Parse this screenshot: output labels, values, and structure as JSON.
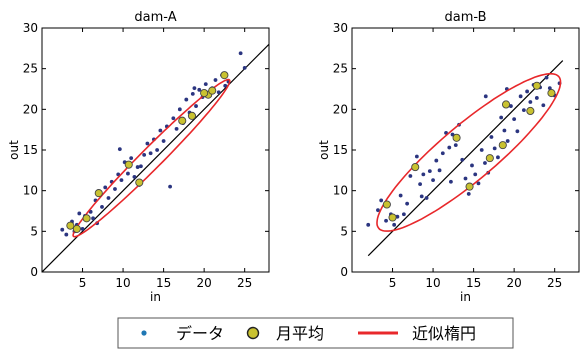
{
  "chart_data": [
    {
      "type": "scatter",
      "title": "dam-A",
      "xlabel": "in",
      "ylabel": "out",
      "xlim": [
        0,
        28
      ],
      "ylim": [
        0,
        30
      ],
      "xticks": [
        5,
        10,
        15,
        20,
        25
      ],
      "yticks": [
        0,
        5,
        10,
        15,
        20,
        25,
        30
      ],
      "grid": false,
      "reference_line": [
        [
          0,
          0
        ],
        [
          28,
          28
        ]
      ],
      "ellipse": {
        "center": [
          13.5,
          14.0
        ],
        "semi_major": 13.6,
        "semi_minor": 1.3,
        "angle_deg": 45
      },
      "series": [
        {
          "name": "データ",
          "points": [
            [
              2.5,
              5.2
            ],
            [
              3.0,
              4.6
            ],
            [
              3.3,
              5.6
            ],
            [
              3.7,
              6.2
            ],
            [
              4.0,
              5.0
            ],
            [
              4.3,
              5.8
            ],
            [
              4.6,
              7.2
            ],
            [
              5.0,
              5.3
            ],
            [
              5.3,
              6.9
            ],
            [
              5.6,
              6.4
            ],
            [
              6.0,
              7.4
            ],
            [
              6.3,
              6.6
            ],
            [
              6.6,
              8.8
            ],
            [
              7.0,
              9.5
            ],
            [
              7.4,
              8.0
            ],
            [
              7.8,
              10.4
            ],
            [
              8.2,
              9.1
            ],
            [
              8.6,
              11.1
            ],
            [
              9.0,
              10.2
            ],
            [
              9.4,
              12.0
            ],
            [
              9.8,
              11.3
            ],
            [
              10.2,
              13.5
            ],
            [
              10.6,
              12.1
            ],
            [
              11.0,
              14.0
            ],
            [
              11.4,
              11.7
            ],
            [
              11.8,
              12.9
            ],
            [
              12.2,
              13.0
            ],
            [
              12.6,
              14.4
            ],
            [
              13.0,
              15.8
            ],
            [
              13.4,
              14.6
            ],
            [
              13.8,
              16.3
            ],
            [
              14.2,
              15.0
            ],
            [
              14.6,
              17.4
            ],
            [
              15.0,
              16.1
            ],
            [
              15.4,
              17.9
            ],
            [
              15.8,
              10.5
            ],
            [
              16.2,
              18.9
            ],
            [
              16.6,
              17.6
            ],
            [
              17.0,
              20.0
            ],
            [
              17.4,
              18.3
            ],
            [
              17.8,
              21.2
            ],
            [
              18.2,
              19.6
            ],
            [
              18.6,
              21.9
            ],
            [
              19.0,
              20.4
            ],
            [
              19.4,
              22.4
            ],
            [
              19.8,
              21.5
            ],
            [
              20.2,
              23.1
            ],
            [
              20.6,
              21.9
            ],
            [
              21.0,
              22.6
            ],
            [
              21.4,
              23.6
            ],
            [
              21.8,
              22.1
            ],
            [
              22.2,
              24.2
            ],
            [
              22.6,
              22.9
            ],
            [
              23.0,
              23.4
            ],
            [
              24.5,
              26.9
            ],
            [
              25.0,
              25.1
            ],
            [
              12.0,
              10.7
            ],
            [
              9.6,
              15.1
            ],
            [
              18.8,
              22.6
            ],
            [
              6.8,
              6.0
            ]
          ]
        },
        {
          "name": "月平均",
          "points": [
            [
              3.5,
              5.7
            ],
            [
              4.3,
              5.3
            ],
            [
              5.5,
              6.6
            ],
            [
              7.0,
              9.7
            ],
            [
              10.7,
              13.2
            ],
            [
              12.0,
              11.0
            ],
            [
              17.3,
              18.6
            ],
            [
              18.5,
              19.2
            ],
            [
              20.5,
              21.8
            ],
            [
              21.0,
              22.3
            ],
            [
              22.5,
              24.2
            ],
            [
              20.0,
              22.0
            ]
          ]
        }
      ]
    },
    {
      "type": "scatter",
      "title": "dam-B",
      "xlabel": "in",
      "ylabel": "out",
      "xlim": [
        0,
        28
      ],
      "ylim": [
        0,
        30
      ],
      "xticks": [
        5,
        10,
        15,
        20,
        25
      ],
      "yticks": [
        0,
        5,
        10,
        15,
        20,
        25,
        30
      ],
      "grid": false,
      "reference_line": [
        [
          2,
          2
        ],
        [
          26,
          26
        ]
      ],
      "ellipse": {
        "center": [
          14.4,
          14.7
        ],
        "semi_major": 14.5,
        "semi_minor": 3.4,
        "angle_deg": 40
      },
      "series": [
        {
          "name": "データ",
          "points": [
            [
              2.0,
              5.8
            ],
            [
              3.2,
              7.6
            ],
            [
              3.6,
              8.8
            ],
            [
              4.2,
              6.3
            ],
            [
              4.8,
              7.1
            ],
            [
              5.2,
              5.8
            ],
            [
              5.6,
              6.8
            ],
            [
              6.0,
              9.4
            ],
            [
              6.4,
              7.1
            ],
            [
              6.8,
              8.4
            ],
            [
              7.2,
              11.8
            ],
            [
              7.6,
              12.9
            ],
            [
              8.0,
              14.2
            ],
            [
              8.4,
              10.8
            ],
            [
              8.8,
              12.0
            ],
            [
              9.2,
              9.1
            ],
            [
              9.6,
              12.4
            ],
            [
              10.0,
              11.3
            ],
            [
              10.4,
              13.7
            ],
            [
              10.8,
              12.5
            ],
            [
              11.2,
              14.6
            ],
            [
              11.6,
              17.1
            ],
            [
              12.0,
              15.3
            ],
            [
              12.4,
              16.9
            ],
            [
              12.8,
              15.6
            ],
            [
              13.2,
              18.1
            ],
            [
              13.6,
              13.8
            ],
            [
              14.0,
              11.5
            ],
            [
              14.4,
              9.6
            ],
            [
              14.8,
              13.1
            ],
            [
              15.2,
              12.0
            ],
            [
              15.6,
              10.9
            ],
            [
              16.0,
              15.0
            ],
            [
              16.4,
              13.4
            ],
            [
              16.8,
              12.2
            ],
            [
              17.2,
              16.6
            ],
            [
              17.6,
              15.2
            ],
            [
              18.0,
              14.1
            ],
            [
              18.4,
              19.0
            ],
            [
              18.8,
              17.4
            ],
            [
              19.2,
              16.1
            ],
            [
              19.6,
              20.4
            ],
            [
              20.0,
              18.8
            ],
            [
              20.4,
              17.3
            ],
            [
              20.8,
              21.6
            ],
            [
              21.2,
              19.9
            ],
            [
              21.6,
              22.2
            ],
            [
              22.0,
              20.9
            ],
            [
              22.4,
              23.0
            ],
            [
              22.8,
              21.4
            ],
            [
              23.2,
              22.7
            ],
            [
              23.6,
              20.5
            ],
            [
              24.0,
              23.9
            ],
            [
              24.4,
              22.6
            ],
            [
              25.0,
              21.7
            ],
            [
              25.6,
              23.2
            ],
            [
              16.5,
              21.6
            ],
            [
              12.2,
              11.1
            ],
            [
              8.6,
              9.3
            ],
            [
              19.1,
              22.5
            ]
          ]
        },
        {
          "name": "月平均",
          "points": [
            [
              4.3,
              8.3
            ],
            [
              5.0,
              6.7
            ],
            [
              7.8,
              12.9
            ],
            [
              12.9,
              16.5
            ],
            [
              14.5,
              10.5
            ],
            [
              17.0,
              14.0
            ],
            [
              18.6,
              15.6
            ],
            [
              19.0,
              20.6
            ],
            [
              22.0,
              19.8
            ],
            [
              22.8,
              22.9
            ],
            [
              24.6,
              22.0
            ]
          ]
        }
      ]
    }
  ],
  "legend": {
    "placement": "bottom",
    "items": [
      {
        "label": "データ",
        "marker": "dot",
        "color": "#1f2a6e"
      },
      {
        "label": "月平均",
        "marker": "circle",
        "color": "#c9c230"
      },
      {
        "label": "近似楕円",
        "marker": "line",
        "color": "#e8282b"
      }
    ]
  },
  "colors": {
    "data": "#2b3580",
    "mean_fill": "#c9c230",
    "mean_edge": "#444444",
    "ellipse": "#e8282b",
    "line": "#000000"
  }
}
